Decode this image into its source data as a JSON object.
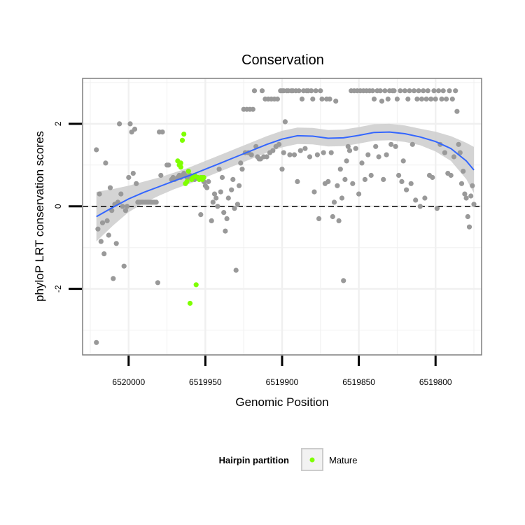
{
  "chart_data": {
    "type": "scatter",
    "title": "Conservation",
    "xlabel": "Genomic Position",
    "ylabel": "phyloP LRT conservation scores",
    "x_reversed": true,
    "xlim": [
      6520030,
      6519770
    ],
    "ylim": [
      -3.6,
      3.1
    ],
    "x_ticks": [
      6520000,
      6519950,
      6519900,
      6519850,
      6519800
    ],
    "x_tick_labels": [
      "6520000",
      "6519950",
      "6519900",
      "6519850",
      "6519800"
    ],
    "y_ticks": [
      -2,
      0,
      2
    ],
    "y_tick_labels": [
      "-2",
      "0",
      "2"
    ],
    "grid": true,
    "reference_line": {
      "y": 0,
      "style": "dashed",
      "color": "#000000"
    },
    "legend": {
      "title": "Hairpin partition",
      "position": "bottom",
      "entries": [
        "Mature"
      ]
    },
    "colors": {
      "other": "#999999",
      "mature": "#7fff00",
      "smooth": "#3366ff",
      "ribbon": "#cccccc",
      "panel_bg": "#ffffff",
      "grid": "#f0f0f0"
    },
    "series": [
      {
        "role": "other",
        "color": "#999999",
        "points": [
          [
            6520021,
            -3.3
          ],
          [
            6520021,
            1.37
          ],
          [
            6520020,
            -0.55
          ],
          [
            6520019,
            0.3
          ],
          [
            6520018,
            -0.85
          ],
          [
            6520017,
            -0.4
          ],
          [
            6520016,
            -1.15
          ],
          [
            6520015,
            1.05
          ],
          [
            6520014,
            -0.35
          ],
          [
            6520013,
            -0.7
          ],
          [
            6520012,
            0.45
          ],
          [
            6520011,
            -0.1
          ],
          [
            6520010,
            -1.75
          ],
          [
            6520009,
            0.05
          ],
          [
            6520008,
            -0.9
          ],
          [
            6520007,
            0.1
          ],
          [
            6520006,
            2.0
          ],
          [
            6520005,
            0.3
          ],
          [
            6520004,
            0.0
          ],
          [
            6520003,
            -1.45
          ],
          [
            6520002,
            -0.1
          ],
          [
            6520001,
            0.0
          ],
          [
            6520000,
            0.7
          ],
          [
            6519999,
            2.0
          ],
          [
            6519998,
            1.8
          ],
          [
            6519997,
            0.8
          ],
          [
            6519996,
            1.87
          ],
          [
            6519995,
            0.55
          ],
          [
            6519994,
            0.1
          ],
          [
            6519993,
            0.1
          ],
          [
            6519992,
            0.1
          ],
          [
            6519991,
            0.1
          ],
          [
            6519990,
            0.1
          ],
          [
            6519989,
            0.1
          ],
          [
            6519988,
            0.1
          ],
          [
            6519987,
            0.1
          ],
          [
            6519986,
            0.1
          ],
          [
            6519985,
            0.1
          ],
          [
            6519984,
            0.1
          ],
          [
            6519983,
            0.1
          ],
          [
            6519982,
            0.1
          ],
          [
            6519981,
            -1.85
          ],
          [
            6519980,
            1.8
          ],
          [
            6519979,
            0.75
          ],
          [
            6519978,
            1.8
          ],
          [
            6519975,
            1.0
          ],
          [
            6519974,
            1.0
          ],
          [
            6519972,
            0.65
          ],
          [
            6519971,
            0.7
          ],
          [
            6519970,
            0.65
          ],
          [
            6519968,
            0.7
          ],
          [
            6519967,
            0.75
          ],
          [
            6519966,
            0.7
          ],
          [
            6519965,
            0.75
          ],
          [
            6519964,
            0.8
          ],
          [
            6519963,
            0.75
          ],
          [
            6519962,
            0.7
          ],
          [
            6519961,
            0.7
          ],
          [
            6519960,
            0.75
          ],
          [
            6519958,
            0.7
          ],
          [
            6519957,
            0.65
          ],
          [
            6519955,
            0.7
          ],
          [
            6519953,
            -0.2
          ],
          [
            6519952,
            0.7
          ],
          [
            6519951,
            0.6
          ],
          [
            6519950,
            0.5
          ],
          [
            6519949,
            0.45
          ],
          [
            6519948,
            0.6
          ],
          [
            6519946,
            -0.35
          ],
          [
            6519945,
            0.1
          ],
          [
            6519944,
            0.3
          ],
          [
            6519943,
            0.2
          ],
          [
            6519942,
            0.0
          ],
          [
            6519941,
            0.9
          ],
          [
            6519940,
            0.35
          ],
          [
            6519939,
            0.7
          ],
          [
            6519938,
            -0.15
          ],
          [
            6519937,
            -0.6
          ],
          [
            6519936,
            -0.3
          ],
          [
            6519935,
            0.2
          ],
          [
            6519933,
            0.4
          ],
          [
            6519932,
            0.65
          ],
          [
            6519931,
            -0.05
          ],
          [
            6519930,
            -1.55
          ],
          [
            6519929,
            0.05
          ],
          [
            6519928,
            0.5
          ],
          [
            6519927,
            1.05
          ],
          [
            6519926,
            0.9
          ],
          [
            6519925,
            2.35
          ],
          [
            6519924,
            1.3
          ],
          [
            6519923,
            2.35
          ],
          [
            6519922,
            1.3
          ],
          [
            6519921,
            2.35
          ],
          [
            6519920,
            1.25
          ],
          [
            6519919,
            2.35
          ],
          [
            6519918,
            2.8
          ],
          [
            6519917,
            1.45
          ],
          [
            6519916,
            1.2
          ],
          [
            6519915,
            1.15
          ],
          [
            6519914,
            1.15
          ],
          [
            6519913,
            2.8
          ],
          [
            6519912,
            1.2
          ],
          [
            6519911,
            2.6
          ],
          [
            6519910,
            1.2
          ],
          [
            6519909,
            2.6
          ],
          [
            6519908,
            1.3
          ],
          [
            6519907,
            2.6
          ],
          [
            6519906,
            1.35
          ],
          [
            6519905,
            2.6
          ],
          [
            6519904,
            1.45
          ],
          [
            6519903,
            2.6
          ],
          [
            6519902,
            1.5
          ],
          [
            6519901,
            2.8
          ],
          [
            6519900,
            2.8
          ],
          [
            6519900,
            0.9
          ],
          [
            6519899,
            2.8
          ],
          [
            6519899,
            1.3
          ],
          [
            6519898,
            2.05
          ],
          [
            6519897,
            2.8
          ],
          [
            6519896,
            2.8
          ],
          [
            6519895,
            1.25
          ],
          [
            6519894,
            2.8
          ],
          [
            6519893,
            2.8
          ],
          [
            6519892,
            1.25
          ],
          [
            6519891,
            2.8
          ],
          [
            6519890,
            0.6
          ],
          [
            6519889,
            2.8
          ],
          [
            6519888,
            1.35
          ],
          [
            6519887,
            2.6
          ],
          [
            6519886,
            2.8
          ],
          [
            6519885,
            1.4
          ],
          [
            6519884,
            2.8
          ],
          [
            6519883,
            2.8
          ],
          [
            6519882,
            1.2
          ],
          [
            6519881,
            2.8
          ],
          [
            6519880,
            2.6
          ],
          [
            6519879,
            0.35
          ],
          [
            6519878,
            2.8
          ],
          [
            6519877,
            1.25
          ],
          [
            6519876,
            -0.3
          ],
          [
            6519875,
            2.8
          ],
          [
            6519874,
            2.6
          ],
          [
            6519873,
            1.3
          ],
          [
            6519872,
            0.55
          ],
          [
            6519871,
            2.6
          ],
          [
            6519870,
            0.6
          ],
          [
            6519869,
            2.6
          ],
          [
            6519868,
            1.3
          ],
          [
            6519867,
            -0.25
          ],
          [
            6519866,
            0.1
          ],
          [
            6519865,
            2.55
          ],
          [
            6519864,
            0.5
          ],
          [
            6519863,
            -0.35
          ],
          [
            6519862,
            0.9
          ],
          [
            6519861,
            0.2
          ],
          [
            6519860,
            -1.8
          ],
          [
            6519859,
            0.65
          ],
          [
            6519858,
            1.1
          ],
          [
            6519857,
            1.45
          ],
          [
            6519856,
            1.35
          ],
          [
            6519855,
            2.8
          ],
          [
            6519854,
            0.55
          ],
          [
            6519853,
            2.8
          ],
          [
            6519852,
            1.4
          ],
          [
            6519851,
            2.8
          ],
          [
            6519850,
            0.3
          ],
          [
            6519849,
            2.8
          ],
          [
            6519848,
            1.05
          ],
          [
            6519847,
            2.8
          ],
          [
            6519846,
            0.65
          ],
          [
            6519845,
            2.8
          ],
          [
            6519844,
            1.25
          ],
          [
            6519843,
            2.8
          ],
          [
            6519842,
            0.75
          ],
          [
            6519841,
            2.8
          ],
          [
            6519840,
            2.6
          ],
          [
            6519839,
            1.45
          ],
          [
            6519838,
            2.8
          ],
          [
            6519837,
            1.2
          ],
          [
            6519836,
            2.8
          ],
          [
            6519835,
            2.55
          ],
          [
            6519834,
            0.65
          ],
          [
            6519833,
            2.8
          ],
          [
            6519832,
            1.25
          ],
          [
            6519831,
            2.6
          ],
          [
            6519830,
            2.8
          ],
          [
            6519829,
            1.5
          ],
          [
            6519828,
            2.8
          ],
          [
            6519827,
            2.8
          ],
          [
            6519826,
            1.45
          ],
          [
            6519825,
            2.6
          ],
          [
            6519824,
            0.75
          ],
          [
            6519823,
            2.8
          ],
          [
            6519822,
            0.6
          ],
          [
            6519821,
            1.1
          ],
          [
            6519820,
            2.8
          ],
          [
            6519819,
            0.4
          ],
          [
            6519818,
            2.6
          ],
          [
            6519817,
            2.8
          ],
          [
            6519816,
            0.55
          ],
          [
            6519815,
            1.5
          ],
          [
            6519814,
            2.8
          ],
          [
            6519813,
            0.15
          ],
          [
            6519812,
            2.6
          ],
          [
            6519811,
            2.8
          ],
          [
            6519810,
            0.0
          ],
          [
            6519809,
            2.6
          ],
          [
            6519808,
            2.8
          ],
          [
            6519807,
            0.2
          ],
          [
            6519806,
            2.6
          ],
          [
            6519805,
            2.8
          ],
          [
            6519804,
            0.75
          ],
          [
            6519803,
            2.6
          ],
          [
            6519802,
            0.7
          ],
          [
            6519801,
            2.8
          ],
          [
            6519800,
            2.6
          ],
          [
            6519799,
            -0.05
          ],
          [
            6519798,
            2.8
          ],
          [
            6519797,
            1.5
          ],
          [
            6519796,
            2.6
          ],
          [
            6519795,
            2.8
          ],
          [
            6519794,
            1.3
          ],
          [
            6519793,
            2.6
          ],
          [
            6519792,
            0.8
          ],
          [
            6519791,
            2.8
          ],
          [
            6519790,
            0.75
          ],
          [
            6519789,
            2.6
          ],
          [
            6519788,
            1.2
          ],
          [
            6519787,
            2.8
          ],
          [
            6519786,
            2.3
          ],
          [
            6519785,
            1.5
          ],
          [
            6519784,
            1.3
          ],
          [
            6519783,
            0.55
          ],
          [
            6519782,
            0.85
          ],
          [
            6519781,
            0.3
          ],
          [
            6519780,
            0.2
          ],
          [
            6519779,
            -0.25
          ],
          [
            6519778,
            -0.5
          ],
          [
            6519777,
            0.25
          ],
          [
            6519776,
            0.5
          ],
          [
            6519775,
            0.05
          ]
        ]
      },
      {
        "role": "mature",
        "name": "Mature",
        "color": "#7fff00",
        "points": [
          [
            6519968,
            1.1
          ],
          [
            6519967,
            1.0
          ],
          [
            6519966,
            1.05
          ],
          [
            6519965,
            1.6
          ],
          [
            6519964,
            1.75
          ],
          [
            6519963,
            0.55
          ],
          [
            6519962,
            0.6
          ],
          [
            6519961,
            0.85
          ],
          [
            6519960,
            -2.35
          ],
          [
            6519959,
            0.65
          ],
          [
            6519958,
            0.7
          ],
          [
            6519957,
            0.75
          ],
          [
            6519956,
            -1.9
          ],
          [
            6519955,
            0.7
          ],
          [
            6519954,
            0.65
          ],
          [
            6519953,
            0.7
          ],
          [
            6519952,
            0.65
          ],
          [
            6519951,
            0.7
          ],
          [
            6519966,
            0.95
          ]
        ]
      }
    ],
    "smooth": {
      "x": [
        6520021,
        6520010,
        6520000,
        6519990,
        6519980,
        6519970,
        6519960,
        6519950,
        6519940,
        6519930,
        6519920,
        6519910,
        6519900,
        6519890,
        6519880,
        6519870,
        6519860,
        6519850,
        6519840,
        6519830,
        6519820,
        6519810,
        6519800,
        6519790,
        6519780,
        6519775
      ],
      "y": [
        -0.25,
        -0.02,
        0.18,
        0.34,
        0.48,
        0.62,
        0.75,
        0.9,
        1.05,
        1.2,
        1.35,
        1.5,
        1.63,
        1.71,
        1.7,
        1.65,
        1.66,
        1.72,
        1.79,
        1.8,
        1.76,
        1.68,
        1.57,
        1.4,
        1.1,
        0.88
      ],
      "se": [
        0.3,
        0.22,
        0.16,
        0.13,
        0.11,
        0.1,
        0.1,
        0.1,
        0.1,
        0.1,
        0.1,
        0.1,
        0.1,
        0.1,
        0.1,
        0.1,
        0.1,
        0.1,
        0.1,
        0.1,
        0.1,
        0.1,
        0.12,
        0.15,
        0.22,
        0.28
      ]
    }
  }
}
